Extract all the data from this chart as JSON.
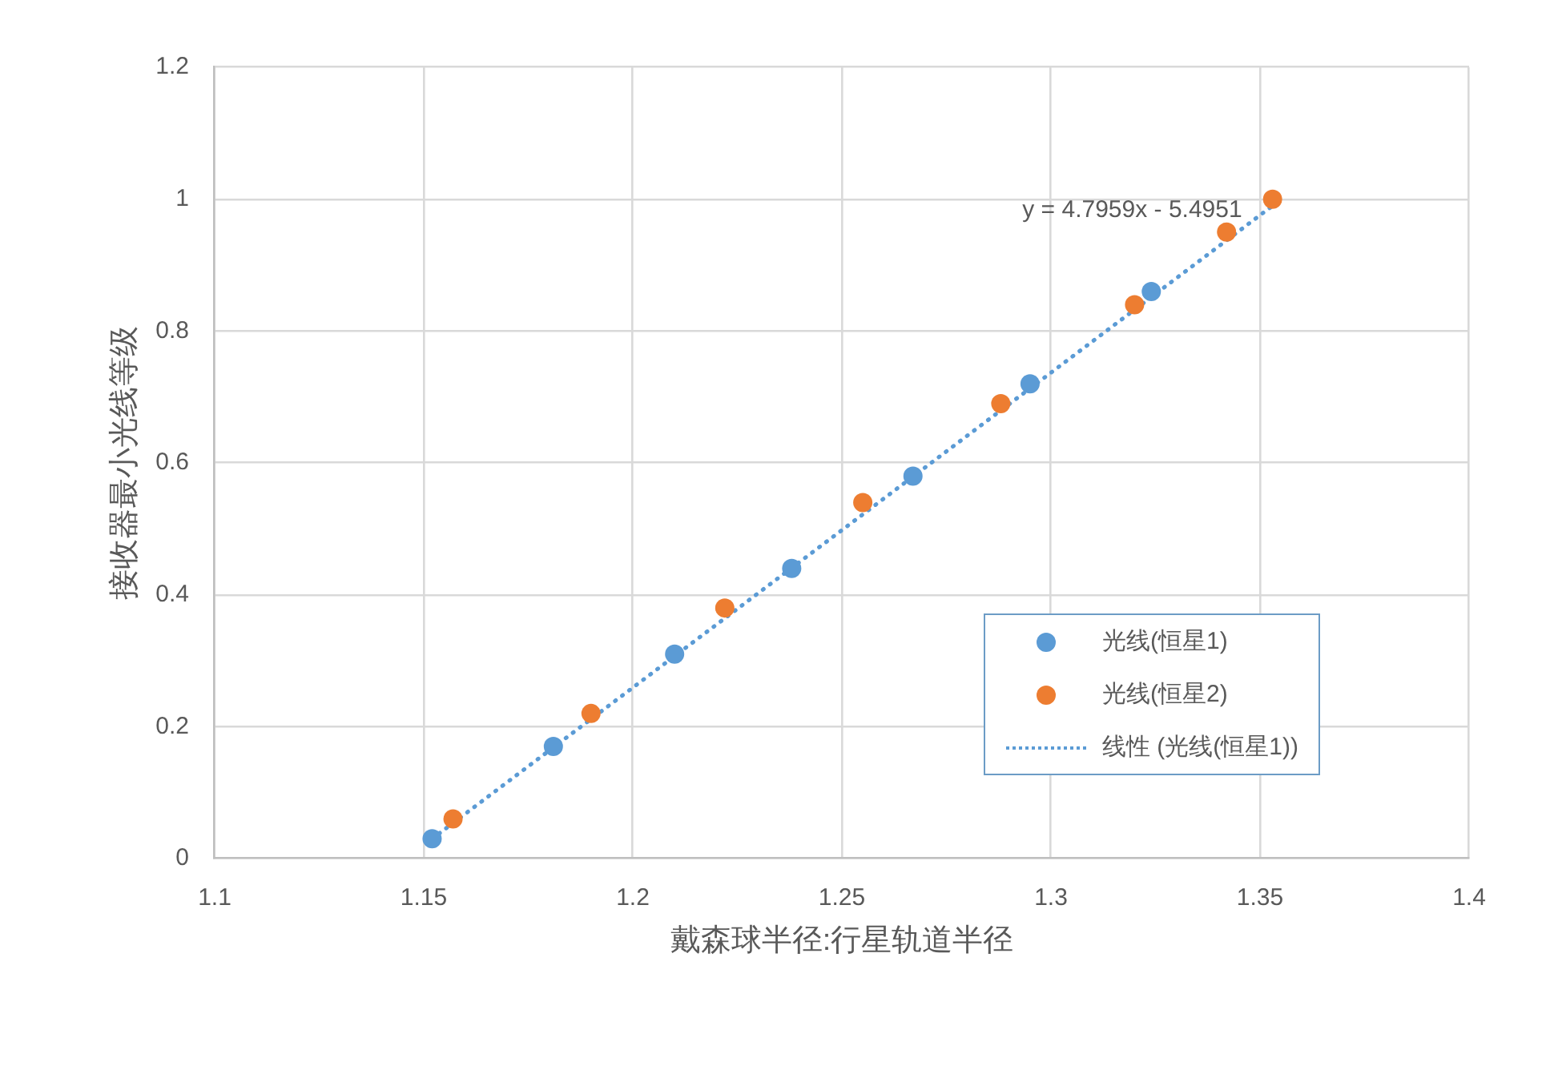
{
  "chart_data": {
    "type": "scatter",
    "xlabel": "戴森球半径:行星轨道半径",
    "ylabel": "接收器最小光线等级",
    "xlim": [
      1.1,
      1.4
    ],
    "xticks": [
      1.1,
      1.15,
      1.2,
      1.25,
      1.3,
      1.35,
      1.4
    ],
    "ylim": [
      0,
      1.2
    ],
    "yticks": [
      0,
      0.2,
      0.4,
      0.6,
      0.8,
      1,
      1.2
    ],
    "grid": true,
    "legend": "bottom right",
    "marker": "circle",
    "series": [
      {
        "name": "光线(恒星1)",
        "color": "#5b9bd5",
        "x": [
          1.152,
          1.181,
          1.21,
          1.238,
          1.267,
          1.295,
          1.324
        ],
        "values": [
          0.03,
          0.17,
          0.31,
          0.44,
          0.58,
          0.72,
          0.86
        ]
      },
      {
        "name": "光线(恒星2)",
        "color": "#ed7d31",
        "x": [
          1.157,
          1.19,
          1.222,
          1.255,
          1.288,
          1.32,
          1.342,
          1.353
        ],
        "values": [
          0.06,
          0.22,
          0.38,
          0.54,
          0.69,
          0.84,
          0.95,
          1.0
        ]
      },
      {
        "name": "线性 (光线(恒星1))",
        "type": "line",
        "line_style": "dotted",
        "marker": "none",
        "color": "#5b9bd5",
        "x": [
          1.152,
          1.353
        ],
        "values": [
          0.03,
          0.99
        ]
      }
    ],
    "annotations": [
      {
        "text": "y = 4.7959x - 5.4951",
        "x": 1.353,
        "y": 0.99
      }
    ]
  }
}
